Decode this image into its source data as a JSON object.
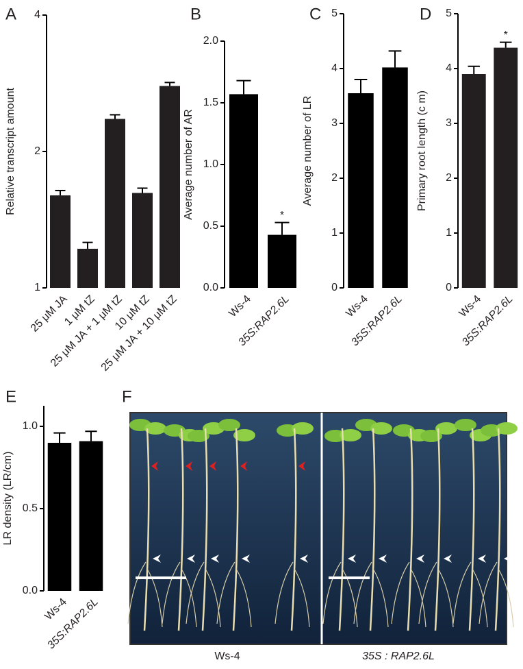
{
  "chart_data": [
    {
      "type": "bar",
      "panel": "A",
      "ylabel": "Relative transcript amount",
      "log_scale": true,
      "categories": [
        "25 μM JA",
        "1 μM tZ",
        "25 μM JA + 1 μM tZ",
        "10 μM tZ",
        "25 μM JA + 10 μM tZ"
      ],
      "values": [
        1.6,
        1.22,
        2.36,
        1.62,
        2.79
      ],
      "errors": [
        0.04,
        0.04,
        0.05,
        0.04,
        0.05
      ],
      "color": "#231f20",
      "ylim": [
        1,
        4
      ],
      "yticks": [
        1,
        2,
        4
      ]
    },
    {
      "type": "bar",
      "panel": "B",
      "ylabel": "Average number of AR",
      "categories": [
        "Ws-4",
        "35S:RAP2.6L"
      ],
      "values": [
        1.57,
        0.43
      ],
      "errors": [
        0.11,
        0.1
      ],
      "markers": [
        null,
        "*"
      ],
      "color": "#000000",
      "ylim": [
        0,
        2.0
      ],
      "yticks": [
        {
          "value": 0,
          "label": "0.0"
        },
        {
          "value": 0.5,
          "label": "0.5"
        },
        {
          "value": 1,
          "label": "1.0"
        },
        {
          "value": 1.5,
          "label": "1.5"
        },
        {
          "value": 2,
          "label": "2.0"
        }
      ]
    },
    {
      "type": "bar",
      "panel": "C",
      "ylabel": "Average number of LR",
      "categories": [
        "Ws-4",
        "35S:RAP2.6L"
      ],
      "values": [
        3.55,
        4.02
      ],
      "errors": [
        0.25,
        0.3
      ],
      "color": "#000000",
      "ylim": [
        0,
        5
      ],
      "yticks": [
        0,
        1,
        2,
        3,
        4,
        5
      ]
    },
    {
      "type": "bar",
      "panel": "D",
      "ylabel": "Primary root length (c m)",
      "categories": [
        "Ws-4",
        "35S:RAP2.6L"
      ],
      "values": [
        3.9,
        4.38
      ],
      "errors": [
        0.14,
        0.1
      ],
      "markers": [
        null,
        "*"
      ],
      "color": "#231f20",
      "ylim": [
        0,
        5
      ],
      "yticks": [
        0,
        1,
        2,
        3,
        4,
        5
      ]
    },
    {
      "type": "bar",
      "panel": "E",
      "ylabel": "LR density (LR/cm)",
      "categories": [
        "Ws-4",
        "35S:RAP2.6L"
      ],
      "values": [
        0.9,
        0.91
      ],
      "errors": [
        0.06,
        0.06
      ],
      "color": "#000000",
      "ylim": [
        0,
        1.125
      ],
      "yticks": [
        {
          "value": 0,
          "label": "0.0"
        },
        {
          "value": 0.5,
          "label": "0.5"
        },
        {
          "value": 1,
          "label": "1.0"
        }
      ]
    }
  ],
  "panel_f": {
    "panel": "F",
    "captions": [
      "Ws-4",
      "35S : RAP2.6L"
    ]
  }
}
